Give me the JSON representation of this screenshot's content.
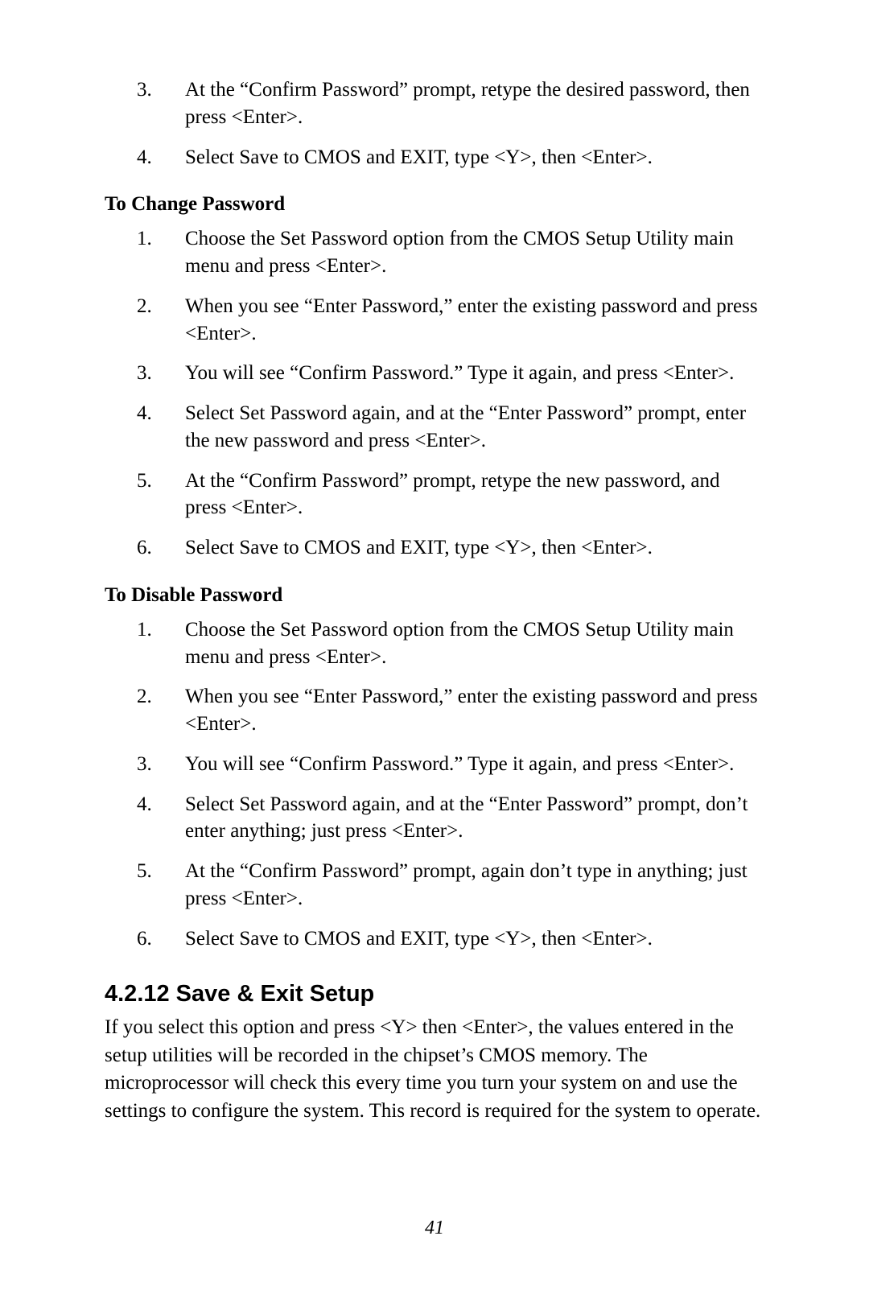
{
  "topList": [
    {
      "num": "3.",
      "text": "At the “Confirm Password” prompt, retype the desired password, then press <Enter>."
    },
    {
      "num": "4.",
      "text": "Select Save to CMOS and EXIT, type <Y>, then <Enter>."
    }
  ],
  "section1": {
    "heading": "To Change Password",
    "items": [
      {
        "num": "1.",
        "text": "Choose the Set Password option from the CMOS Setup Utility main menu and press <Enter>."
      },
      {
        "num": "2.",
        "text": "When you see “Enter Password,” enter the existing password and press <Enter>."
      },
      {
        "num": "3.",
        "text": "You will see “Confirm Password.” Type it again, and press <Enter>."
      },
      {
        "num": "4.",
        "text": "Select Set Password again, and at the “Enter Password” prompt, enter the new password and press <Enter>."
      },
      {
        "num": "5.",
        "text": "At the “Confirm Password” prompt, retype the new password, and press <Enter>."
      },
      {
        "num": "6.",
        "text": "Select Save to CMOS and EXIT, type <Y>, then <Enter>."
      }
    ]
  },
  "section2": {
    "heading": "To Disable Password",
    "items": [
      {
        "num": "1.",
        "text": "Choose the Set Password option from the CMOS Setup Utility main menu and press <Enter>."
      },
      {
        "num": "2.",
        "text": "When you see “Enter Password,” enter the existing password and press <Enter>."
      },
      {
        "num": "3.",
        "text": "You will see “Confirm Password.” Type it again, and press <Enter>."
      },
      {
        "num": "4.",
        "text": "Select Set Password again, and at the “Enter Password” prompt, don’t enter anything; just press <Enter>."
      },
      {
        "num": "5.",
        "text": "At the “Confirm Password” prompt, again don’t type in anything; just press <Enter>."
      },
      {
        "num": "6.",
        "text": "Select Save to CMOS and EXIT, type <Y>, then <Enter>."
      }
    ]
  },
  "chapter": {
    "heading": "4.2.12 Save & Exit Setup",
    "body": "If you select this option and press <Y> then <Enter>, the values entered in the setup utilities will be recorded in the chipset’s CMOS memory. The microprocessor will check this every time you turn your system on and use the settings to configure the system. This record is required for the system to operate."
  },
  "pageNumber": "41"
}
